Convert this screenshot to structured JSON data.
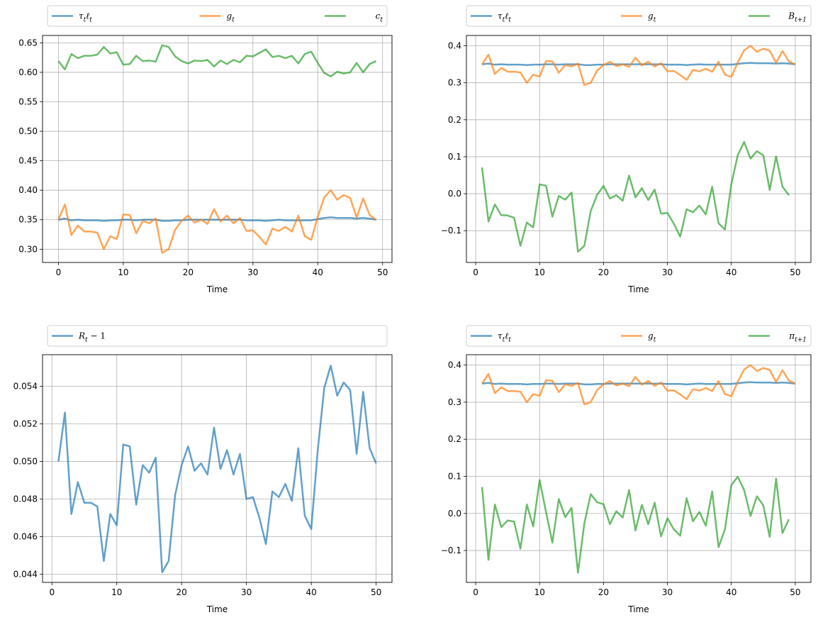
{
  "chart_data": [
    {
      "type": "line",
      "xlabel": "Time",
      "xlim": [
        -2.45,
        51.45
      ],
      "ylim": [
        0.2775,
        0.6625
      ],
      "xticks": [
        0,
        10,
        20,
        30,
        40,
        50
      ],
      "xtick_labels": [
        "0",
        "10",
        "20",
        "30",
        "40",
        "50"
      ],
      "yticks": [
        0.3,
        0.35,
        0.4,
        0.45,
        0.5,
        0.55,
        0.6,
        0.65
      ],
      "ytick_labels": [
        "0.30",
        "0.35",
        "0.40",
        "0.45",
        "0.50",
        "0.55",
        "0.60",
        "0.65"
      ],
      "grid": true,
      "legend_position": "above",
      "series": [
        {
          "name": "τtℓt",
          "color": "#1f77b4",
          "x_start": 0,
          "values": [
            0.35,
            0.352,
            0.349,
            0.35,
            0.349,
            0.349,
            0.349,
            0.348,
            0.349,
            0.349,
            0.35,
            0.35,
            0.349,
            0.35,
            0.35,
            0.35,
            0.348,
            0.348,
            0.349,
            0.349,
            0.35,
            0.35,
            0.35,
            0.35,
            0.35,
            0.35,
            0.35,
            0.35,
            0.35,
            0.349,
            0.349,
            0.349,
            0.348,
            0.349,
            0.35,
            0.349,
            0.349,
            0.349,
            0.349,
            0.349,
            0.351,
            0.353,
            0.354,
            0.353,
            0.353,
            0.353,
            0.352,
            0.353,
            0.352,
            0.35
          ]
        },
        {
          "name": "gt",
          "color": "#ff7f0e",
          "x_start": 0,
          "values": [
            0.35,
            0.376,
            0.324,
            0.34,
            0.33,
            0.33,
            0.328,
            0.3,
            0.322,
            0.317,
            0.359,
            0.358,
            0.327,
            0.348,
            0.344,
            0.352,
            0.294,
            0.3,
            0.333,
            0.348,
            0.357,
            0.345,
            0.35,
            0.343,
            0.368,
            0.347,
            0.357,
            0.344,
            0.353,
            0.331,
            0.332,
            0.321,
            0.308,
            0.335,
            0.331,
            0.338,
            0.33,
            0.357,
            0.322,
            0.316,
            0.355,
            0.388,
            0.4,
            0.384,
            0.392,
            0.387,
            0.354,
            0.386,
            0.358,
            0.35
          ]
        },
        {
          "name": "ct",
          "color": "#2ca02c",
          "x_start": 0,
          "values": [
            0.619,
            0.605,
            0.631,
            0.624,
            0.628,
            0.628,
            0.63,
            0.643,
            0.632,
            0.634,
            0.613,
            0.614,
            0.628,
            0.619,
            0.62,
            0.618,
            0.646,
            0.643,
            0.627,
            0.619,
            0.615,
            0.62,
            0.619,
            0.621,
            0.61,
            0.62,
            0.614,
            0.621,
            0.617,
            0.628,
            0.627,
            0.633,
            0.639,
            0.626,
            0.628,
            0.624,
            0.628,
            0.615,
            0.631,
            0.635,
            0.616,
            0.599,
            0.593,
            0.601,
            0.598,
            0.6,
            0.616,
            0.6,
            0.614,
            0.619
          ]
        }
      ]
    },
    {
      "type": "line",
      "xlabel": "Time",
      "xlim": [
        -1.45,
        52.45
      ],
      "ylim": [
        -0.186,
        0.428
      ],
      "xticks": [
        0,
        10,
        20,
        30,
        40,
        50
      ],
      "xtick_labels": [
        "0",
        "10",
        "20",
        "30",
        "40",
        "50"
      ],
      "yticks": [
        -0.1,
        0.0,
        0.1,
        0.2,
        0.3,
        0.4
      ],
      "ytick_labels": [
        "−0.1",
        "0.0",
        "0.1",
        "0.2",
        "0.3",
        "0.4"
      ],
      "grid": true,
      "legend_position": "above",
      "series": [
        {
          "name": "τtℓt",
          "color": "#1f77b4",
          "x_start": 1,
          "values": [
            0.35,
            0.352,
            0.349,
            0.35,
            0.349,
            0.349,
            0.349,
            0.348,
            0.349,
            0.349,
            0.35,
            0.35,
            0.349,
            0.35,
            0.35,
            0.35,
            0.348,
            0.348,
            0.349,
            0.349,
            0.35,
            0.35,
            0.35,
            0.35,
            0.35,
            0.35,
            0.35,
            0.35,
            0.35,
            0.349,
            0.349,
            0.349,
            0.348,
            0.349,
            0.35,
            0.349,
            0.349,
            0.349,
            0.349,
            0.349,
            0.351,
            0.353,
            0.354,
            0.353,
            0.353,
            0.353,
            0.352,
            0.353,
            0.352,
            0.35
          ]
        },
        {
          "name": "gt",
          "color": "#ff7f0e",
          "x_start": 1,
          "values": [
            0.35,
            0.376,
            0.324,
            0.34,
            0.33,
            0.33,
            0.328,
            0.3,
            0.322,
            0.317,
            0.359,
            0.358,
            0.327,
            0.348,
            0.344,
            0.352,
            0.294,
            0.3,
            0.333,
            0.348,
            0.357,
            0.345,
            0.35,
            0.343,
            0.368,
            0.347,
            0.357,
            0.344,
            0.353,
            0.331,
            0.332,
            0.321,
            0.308,
            0.335,
            0.331,
            0.338,
            0.33,
            0.357,
            0.322,
            0.316,
            0.355,
            0.388,
            0.4,
            0.384,
            0.392,
            0.387,
            0.354,
            0.386,
            0.358,
            0.35
          ]
        },
        {
          "name": "Bt+1",
          "color": "#2ca02c",
          "x_start": 1,
          "values": [
            0.071,
            -0.075,
            -0.029,
            -0.058,
            -0.059,
            -0.065,
            -0.141,
            -0.078,
            -0.091,
            0.025,
            0.022,
            -0.062,
            -0.006,
            -0.016,
            0.003,
            -0.157,
            -0.141,
            -0.047,
            -0.003,
            0.021,
            -0.013,
            -0.004,
            -0.019,
            0.049,
            -0.01,
            0.015,
            -0.017,
            0.011,
            -0.054,
            -0.052,
            -0.081,
            -0.116,
            -0.042,
            -0.05,
            -0.032,
            -0.056,
            0.019,
            -0.08,
            -0.097,
            0.026,
            0.104,
            0.14,
            0.095,
            0.115,
            0.104,
            0.01,
            0.101,
            0.019,
            -0.004
          ]
        }
      ]
    },
    {
      "type": "line",
      "xlabel": "Time",
      "xlim": [
        -1.45,
        52.45
      ],
      "ylim": [
        0.04356,
        0.05568
      ],
      "xticks": [
        0,
        10,
        20,
        30,
        40,
        50
      ],
      "xtick_labels": [
        "0",
        "10",
        "20",
        "30",
        "40",
        "50"
      ],
      "yticks": [
        0.044,
        0.046,
        0.048,
        0.05,
        0.052,
        0.054
      ],
      "ytick_labels": [
        "0.044",
        "0.046",
        "0.048",
        "0.050",
        "0.052",
        "0.054"
      ],
      "grid": true,
      "legend_position": "above",
      "series": [
        {
          "name": "Rt − 1",
          "color": "#1f77b4",
          "x_start": 1,
          "values": [
            0.05,
            0.0526,
            0.0472,
            0.0489,
            0.0478,
            0.0478,
            0.0476,
            0.0447,
            0.0472,
            0.0466,
            0.0509,
            0.0508,
            0.0477,
            0.0498,
            0.0494,
            0.0502,
            0.0441,
            0.0447,
            0.0482,
            0.0498,
            0.0508,
            0.0495,
            0.0499,
            0.0493,
            0.0518,
            0.0496,
            0.0506,
            0.0493,
            0.0504,
            0.048,
            0.0481,
            0.047,
            0.0456,
            0.0484,
            0.0481,
            0.0488,
            0.0479,
            0.0507,
            0.0471,
            0.0464,
            0.0506,
            0.0539,
            0.0551,
            0.0535,
            0.0542,
            0.0538,
            0.0504,
            0.0537,
            0.0507,
            0.0499
          ]
        }
      ]
    },
    {
      "type": "line",
      "xlabel": "Time",
      "xlim": [
        -1.45,
        52.45
      ],
      "ylim": [
        -0.186,
        0.428
      ],
      "xticks": [
        0,
        10,
        20,
        30,
        40,
        50
      ],
      "xtick_labels": [
        "0",
        "10",
        "20",
        "30",
        "40",
        "50"
      ],
      "yticks": [
        -0.1,
        0.0,
        0.1,
        0.2,
        0.3,
        0.4
      ],
      "ytick_labels": [
        "−0.1",
        "0.0",
        "0.1",
        "0.2",
        "0.3",
        "0.4"
      ],
      "grid": true,
      "legend_position": "above",
      "series": [
        {
          "name": "τtℓt",
          "color": "#1f77b4",
          "x_start": 1,
          "values": [
            0.35,
            0.352,
            0.349,
            0.35,
            0.349,
            0.349,
            0.349,
            0.348,
            0.349,
            0.349,
            0.35,
            0.35,
            0.349,
            0.35,
            0.35,
            0.35,
            0.348,
            0.348,
            0.349,
            0.349,
            0.35,
            0.35,
            0.35,
            0.35,
            0.35,
            0.35,
            0.35,
            0.35,
            0.35,
            0.349,
            0.349,
            0.349,
            0.348,
            0.349,
            0.35,
            0.349,
            0.349,
            0.349,
            0.349,
            0.349,
            0.351,
            0.353,
            0.354,
            0.353,
            0.353,
            0.353,
            0.352,
            0.353,
            0.352,
            0.35
          ]
        },
        {
          "name": "gt",
          "color": "#ff7f0e",
          "x_start": 1,
          "values": [
            0.35,
            0.376,
            0.324,
            0.34,
            0.33,
            0.33,
            0.328,
            0.3,
            0.322,
            0.317,
            0.359,
            0.358,
            0.327,
            0.348,
            0.344,
            0.352,
            0.294,
            0.3,
            0.333,
            0.348,
            0.357,
            0.345,
            0.35,
            0.343,
            0.368,
            0.347,
            0.357,
            0.344,
            0.353,
            0.331,
            0.332,
            0.321,
            0.308,
            0.335,
            0.331,
            0.338,
            0.33,
            0.357,
            0.322,
            0.316,
            0.355,
            0.388,
            0.4,
            0.384,
            0.392,
            0.387,
            0.354,
            0.386,
            0.358,
            0.35
          ]
        },
        {
          "name": "πt+1",
          "color": "#2ca02c",
          "x_start": 1,
          "values": [
            0.071,
            -0.125,
            0.024,
            -0.037,
            -0.019,
            -0.022,
            -0.095,
            0.024,
            -0.035,
            0.09,
            0.004,
            -0.079,
            0.039,
            -0.01,
            0.015,
            -0.16,
            -0.027,
            0.052,
            0.03,
            0.025,
            -0.029,
            0.006,
            -0.011,
            0.063,
            -0.046,
            0.023,
            -0.029,
            0.029,
            -0.062,
            -0.013,
            -0.043,
            -0.06,
            0.041,
            -0.021,
            0.004,
            -0.033,
            0.059,
            -0.091,
            -0.043,
            0.076,
            0.099,
            0.063,
            -0.007,
            0.046,
            0.022,
            -0.063,
            0.094,
            -0.053,
            -0.016
          ]
        }
      ]
    }
  ]
}
